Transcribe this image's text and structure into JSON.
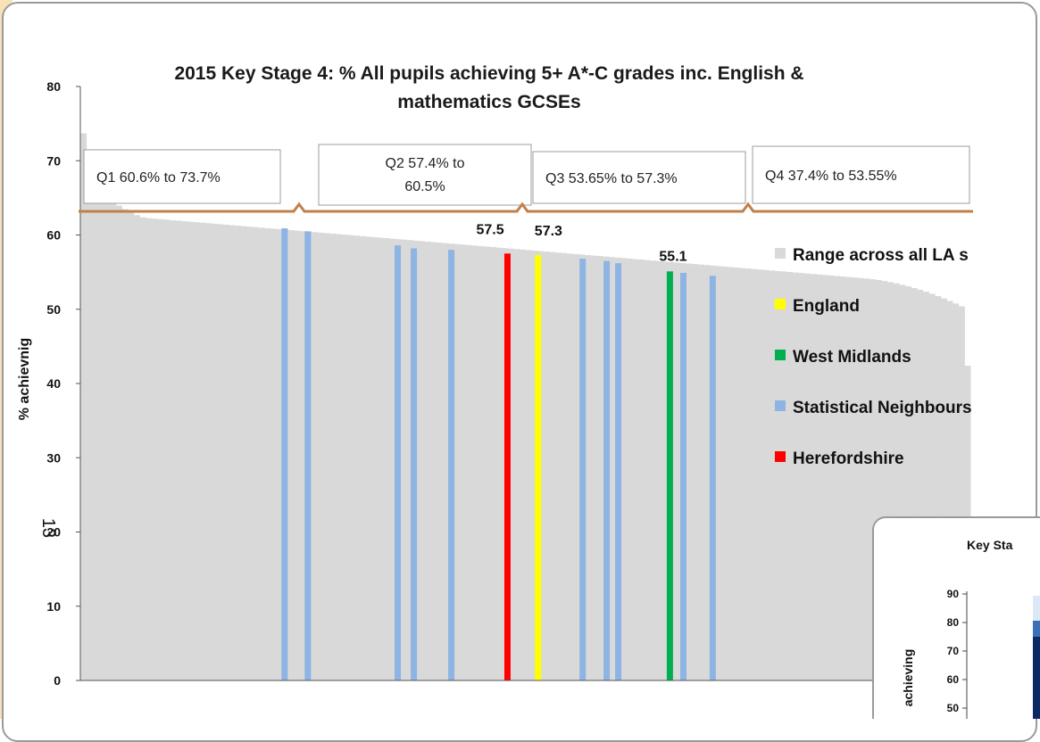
{
  "chart_data": {
    "type": "bar",
    "title_line1": "2015 Key Stage 4: % All pupils achieving 5+ A*-C grades inc. English &",
    "title_line2": "mathematics GCSEs",
    "ylabel": "% achievnig",
    "ylim": [
      0,
      80
    ],
    "yticks": [
      "0",
      "10",
      "20",
      "30",
      "40",
      "50",
      "60",
      "70",
      "80"
    ],
    "bars_count": 150,
    "max_value": 73.7,
    "min_value": 37.4,
    "quartiles": [
      {
        "label": "Q1  60.6% to 73.7%"
      },
      {
        "label_line1": "Q2  57.4% to",
        "label_line2": "60.5%"
      },
      {
        "label": "Q3  53.65% to 57.3%"
      },
      {
        "label": "Q4  37.4% to 53.55%"
      }
    ],
    "highlights": [
      {
        "series": "Statistical Neighbours",
        "value": 60.9
      },
      {
        "series": "Statistical Neighbours",
        "value": 60.5
      },
      {
        "series": "Statistical Neighbours",
        "value": 58.6
      },
      {
        "series": "Statistical Neighbours",
        "value": 58.2
      },
      {
        "series": "Statistical Neighbours",
        "value": 58.0
      },
      {
        "series": "Herefordshire",
        "value": 57.5,
        "label": "57.5"
      },
      {
        "series": "England",
        "value": 57.3,
        "label": "57.3"
      },
      {
        "series": "Statistical Neighbours",
        "value": 56.8
      },
      {
        "series": "Statistical Neighbours",
        "value": 56.5
      },
      {
        "series": "Statistical Neighbours",
        "value": 56.2
      },
      {
        "series": "West Midlands",
        "value": 55.1,
        "label": "55.1"
      },
      {
        "series": "Statistical Neighbours",
        "value": 54.9
      },
      {
        "series": "Statistical Neighbours",
        "value": 54.5
      }
    ],
    "legend": [
      {
        "name": "Range across all LA s",
        "color": "#d9d9d9"
      },
      {
        "name": "England",
        "color": "#ffff00"
      },
      {
        "name": "West Midlands",
        "color": "#00b050"
      },
      {
        "name": "Statistical Neighbours",
        "color": "#8db4e2"
      },
      {
        "name": "Herefordshire",
        "color": "#ff0000"
      }
    ],
    "grid": false,
    "legend_placement": "right"
  },
  "colors": {
    "range": "#d9d9d9",
    "england": "#ffff00",
    "west_midlands": "#00b050",
    "stat_neighbours": "#8db4e2",
    "herefordshire": "#ff0000",
    "brace": "#c0804a"
  },
  "page_number": "13",
  "inset": {
    "title": "Key Sta",
    "ylabel": "achieving",
    "yticks": [
      "50",
      "60",
      "70",
      "80",
      "90"
    ]
  }
}
